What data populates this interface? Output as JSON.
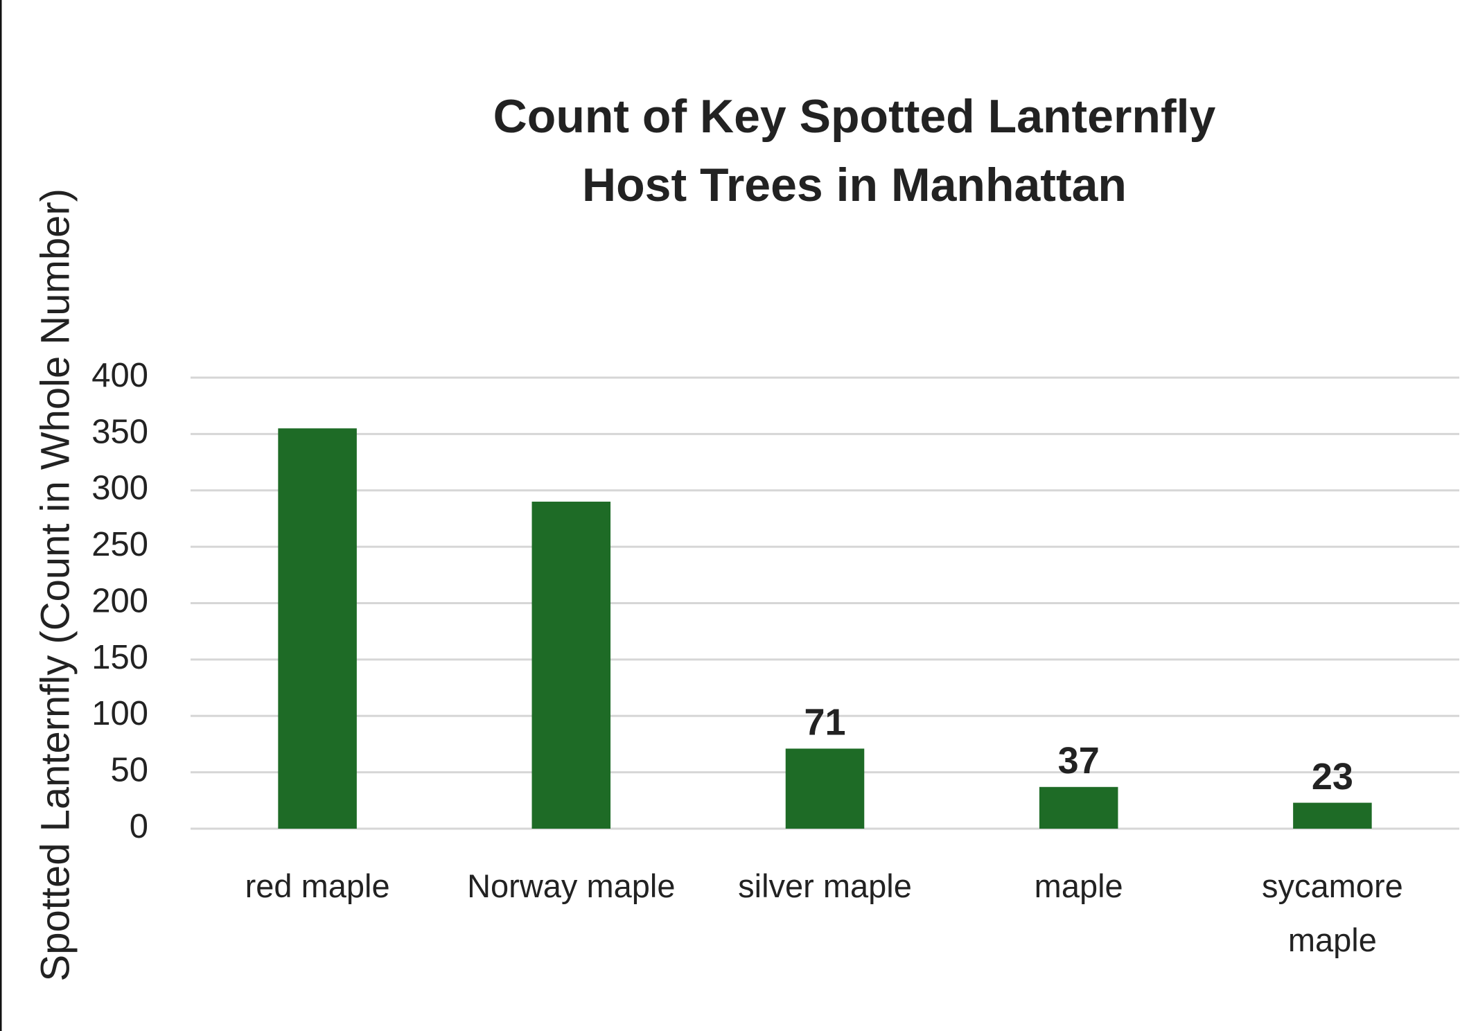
{
  "chart_data": {
    "type": "bar",
    "title": "Count of Key Spotted Lanternfly Host Trees in Manhattan",
    "y_label": "Spotted Lanternfly (Count in Whole Number)",
    "categories": [
      "red maple",
      "Norway maple",
      "silver maple",
      "maple",
      "sycamore maple"
    ],
    "values": [
      355,
      290,
      71,
      37,
      23
    ],
    "value_labels": [
      null,
      null,
      "71",
      "37",
      "23"
    ],
    "color": "#1e6b26",
    "ylim": [
      0,
      400
    ],
    "yticks": [
      0,
      50,
      100,
      150,
      200,
      250,
      300,
      350,
      400
    ],
    "grid": true
  }
}
